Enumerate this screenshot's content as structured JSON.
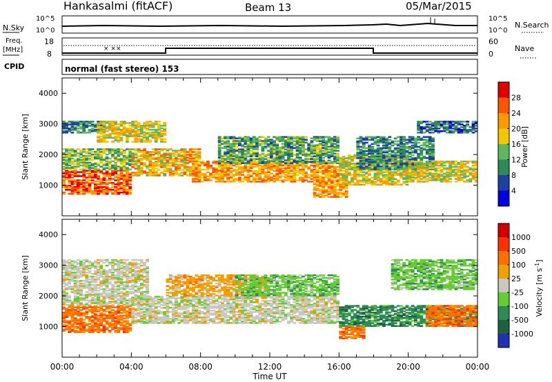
{
  "header": {
    "station": "Hankasalmi (fitACF)",
    "beam": "Beam 13",
    "date": "05/Mar/2015"
  },
  "noise_panel": {
    "left_label": "N.Sky",
    "right_label": "N.Search",
    "left_ticks": [
      "10^5",
      "10^0"
    ],
    "right_ticks": [
      "10^5",
      "10^0"
    ]
  },
  "freq_panel": {
    "left_label_1": "Freq.",
    "left_label_2": "[MHz]",
    "right_label": "Nave",
    "left_ticks": [
      "18",
      "8"
    ],
    "right_ticks": [
      "60",
      "0"
    ]
  },
  "cpid_panel": {
    "label": "CPID",
    "text": "normal (fast stereo) 153"
  },
  "colors": {
    "power": [
      "#0000e0",
      "#2040a0",
      "#2e8b57",
      "#5cb85c",
      "#f0c800",
      "#ff9900",
      "#ff5500",
      "#e00000"
    ],
    "velocity": [
      "#2030b0",
      "#1f6040",
      "#2e8b57",
      "#66cc33",
      "#c8c8c0",
      "#f0a000",
      "#ff7000",
      "#ff3000",
      "#d00000"
    ]
  },
  "chart_data": [
    {
      "type": "heatmap",
      "quantity": "power",
      "xlabel": "Time UT",
      "ylabel": "Slant Range [km]",
      "xlim": [
        0,
        24
      ],
      "ylim": [
        0,
        4500
      ],
      "x_ticks": [
        "00:00",
        "04:00",
        "08:00",
        "12:00",
        "16:00",
        "20:00",
        "00:00"
      ],
      "y_ticks": [
        "1000",
        "2000",
        "3000",
        "4000"
      ],
      "colorbar": {
        "label": "Power [dB]",
        "range": [
          0,
          32
        ],
        "ticks": [
          "4",
          "8",
          "12",
          "16",
          "20",
          "24",
          "28"
        ]
      },
      "regions": [
        {
          "t0": 0.0,
          "t1": 4.0,
          "r0": 700,
          "r1": 1500,
          "level": 26
        },
        {
          "t0": 0.0,
          "t1": 4.0,
          "r0": 1500,
          "r1": 2200,
          "level": 14
        },
        {
          "t0": 0.0,
          "t1": 2.5,
          "r0": 2700,
          "r1": 3100,
          "level": 10
        },
        {
          "t0": 2.0,
          "t1": 6.0,
          "r0": 2400,
          "r1": 3100,
          "level": 18
        },
        {
          "t0": 4.0,
          "t1": 8.0,
          "r0": 1300,
          "r1": 2200,
          "level": 20
        },
        {
          "t0": 7.5,
          "t1": 16.0,
          "r0": 1100,
          "r1": 1800,
          "level": 22
        },
        {
          "t0": 9.0,
          "t1": 16.0,
          "r0": 1700,
          "r1": 2600,
          "level": 12
        },
        {
          "t0": 14.5,
          "t1": 16.5,
          "r0": 600,
          "r1": 1100,
          "level": 22
        },
        {
          "t0": 16.0,
          "t1": 20.0,
          "r0": 1000,
          "r1": 2000,
          "level": 18
        },
        {
          "t0": 17.0,
          "t1": 21.5,
          "r0": 1500,
          "r1": 2600,
          "level": 10
        },
        {
          "t0": 20.0,
          "t1": 24.0,
          "r0": 1100,
          "r1": 1800,
          "level": 18
        },
        {
          "t0": 20.5,
          "t1": 24.0,
          "r0": 2700,
          "r1": 3100,
          "level": 8
        }
      ]
    },
    {
      "type": "heatmap",
      "quantity": "velocity",
      "xlabel": "Time UT",
      "ylabel": "Slant Range [km]",
      "xlim": [
        0,
        24
      ],
      "ylim": [
        0,
        4500
      ],
      "x_ticks": [
        "00:00",
        "04:00",
        "08:00",
        "12:00",
        "16:00",
        "20:00",
        "00:00"
      ],
      "y_ticks": [
        "1000",
        "2000",
        "3000",
        "4000"
      ],
      "colorbar": {
        "label": "Velocity [m s-1]",
        "levels": [
          1000,
          500,
          100,
          25,
          -25,
          -100,
          -500,
          -1000
        ],
        "ticks": [
          "1000",
          "500",
          "100",
          "25",
          "-25",
          "-100",
          "-500",
          "-1000"
        ]
      },
      "regions": [
        {
          "t0": 0.0,
          "t1": 4.0,
          "r0": 800,
          "r1": 1700,
          "class": 6
        },
        {
          "t0": 0.0,
          "t1": 5.0,
          "r0": 1700,
          "r1": 3200,
          "class": 4
        },
        {
          "t0": 4.0,
          "t1": 16.0,
          "r0": 1100,
          "r1": 2000,
          "class": 4
        },
        {
          "t0": 6.0,
          "t1": 12.0,
          "r0": 2000,
          "r1": 2700,
          "class": 5
        },
        {
          "t0": 10.0,
          "t1": 16.0,
          "r0": 2000,
          "r1": 2700,
          "class": 3
        },
        {
          "t0": 16.0,
          "t1": 24.0,
          "r0": 1000,
          "r1": 1700,
          "class": 2
        },
        {
          "t0": 16.0,
          "t1": 17.5,
          "r0": 600,
          "r1": 1000,
          "class": 6
        },
        {
          "t0": 19.0,
          "t1": 24.0,
          "r0": 2200,
          "r1": 3200,
          "class": 3
        },
        {
          "t0": 21.0,
          "t1": 24.0,
          "r0": 1000,
          "r1": 1700,
          "class": 6
        }
      ]
    }
  ]
}
